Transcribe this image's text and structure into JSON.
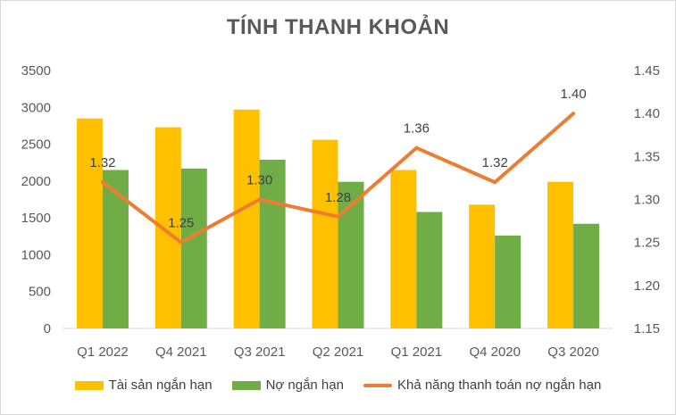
{
  "chart_data": {
    "type": "bar",
    "title": "TÍNH THANH KHOẢN",
    "categories": [
      "Q1 2022",
      "Q4 2021",
      "Q3 2021",
      "Q2 2021",
      "Q1 2021",
      "Q4 2020",
      "Q3 2020"
    ],
    "series": [
      {
        "name": "Tài sản ngắn hạn",
        "type": "bar",
        "axis": "left",
        "color": "#FFC000",
        "values": [
          2850,
          2730,
          2970,
          2560,
          2150,
          1680,
          1990
        ]
      },
      {
        "name": "Nợ ngắn hạn",
        "type": "bar",
        "axis": "left",
        "color": "#70AD47",
        "values": [
          2150,
          2170,
          2290,
          1990,
          1580,
          1260,
          1420
        ]
      },
      {
        "name": "Khả năng thanh toán nợ ngắn hạn",
        "type": "line",
        "axis": "right",
        "color": "#ED7D31",
        "values": [
          1.32,
          1.25,
          1.3,
          1.28,
          1.36,
          1.32,
          1.4
        ],
        "labels": [
          "1.32",
          "1.25",
          "1.30",
          "1.28",
          "1.36",
          "1.32",
          "1.40"
        ]
      }
    ],
    "y_left": {
      "min": 0,
      "max": 3500,
      "ticks": [
        "0",
        "500",
        "1000",
        "1500",
        "2000",
        "2500",
        "3000",
        "3500"
      ]
    },
    "y_right": {
      "min": 1.15,
      "max": 1.45,
      "ticks": [
        "1.15",
        "1.20",
        "1.25",
        "1.30",
        "1.35",
        "1.40",
        "1.45"
      ]
    },
    "grid": false,
    "legend": "bottom"
  }
}
